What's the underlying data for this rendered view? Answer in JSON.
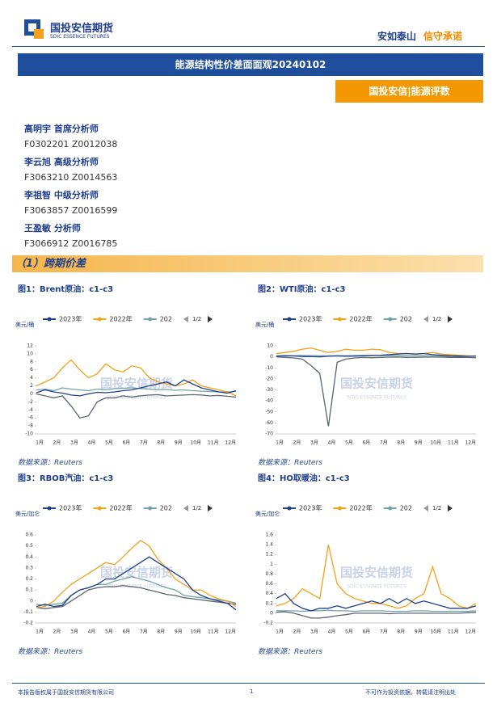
{
  "header": {
    "logo_cn": "国投安信期货",
    "logo_en": "SDIC ESSENCE FUTURES",
    "slogan_a": "安如泰山",
    "slogan_b": "信守承诺"
  },
  "title": "能源结构性价差面面观20240102",
  "tag": "国投安信|能源评数",
  "analysts": [
    {
      "name": "高明宇  首席分析师",
      "id": "F0302201  Z0012038"
    },
    {
      "name": "李云旭  高级分析师",
      "id": "F3063210  Z0014563"
    },
    {
      "name": "李祖智  中级分析师",
      "id": "F3063857  Z0016599"
    },
    {
      "name": "王盈敏  分析师",
      "id": "F3066912  Z0016785"
    }
  ],
  "section": "（1）跨期价差",
  "watermark": {
    "cn": "国投安信期货",
    "en": "SDIC ESSENCE FUTURES"
  },
  "chart_data": [
    {
      "type": "line",
      "title": "图1：Brent原油：c1-c3",
      "source": "数据来源：Reuters",
      "unit": "美元/桶",
      "legend_page": "1/2",
      "categories": [
        "1月",
        null,
        "2月",
        null,
        "3月",
        null,
        "4月",
        null,
        "5月",
        null,
        "6月",
        null,
        "7月",
        null,
        "8月",
        null,
        "9月",
        null,
        "10月",
        null,
        "11月",
        null,
        "12月",
        null
      ],
      "ylim": [
        -10,
        12
      ],
      "yticks": [
        -10,
        -8,
        -6,
        -4,
        -2,
        0,
        2,
        4,
        6,
        8,
        10,
        12
      ],
      "grid": false,
      "series": [
        {
          "name": "2023年",
          "color": "#1f3e8c",
          "values": [
            0.3,
            1.0,
            0.5,
            0.2,
            -0.3,
            -0.5,
            0,
            0.4,
            0.3,
            0.5,
            0.8,
            1.0,
            1.5,
            2.0,
            2.5,
            3.0,
            2.0,
            3.5,
            2.5,
            1.5,
            1.0,
            0.5,
            0.2,
            0.8
          ]
        },
        {
          "name": "2022年",
          "color": "#f5a01a",
          "values": [
            2.0,
            3.0,
            4.0,
            6.5,
            8.5,
            6.0,
            4.0,
            5.0,
            7.5,
            6.0,
            5.5,
            7.0,
            6.5,
            4.0,
            3.0,
            2.5,
            2.0,
            2.5,
            3.5,
            2.0,
            1.5,
            1.0,
            0.5,
            -0.5
          ]
        },
        {
          "name": "202",
          "color": "#6fa3a8",
          "values": [
            1.0,
            1.2,
            0.8,
            1.5,
            1.2,
            1.0,
            0.8,
            1.2,
            1.0,
            1.3,
            1.4,
            1.5,
            1.3,
            1.2,
            1.0,
            1.1,
            0.9,
            1.0,
            0.8,
            0.7,
            0.6,
            0.5,
            0.5,
            0.6
          ]
        },
        {
          "color": "#5a6470",
          "values": [
            0.0,
            -0.5,
            -1.0,
            -0.5,
            -3.0,
            -6.0,
            -5.5,
            -2.0,
            -1.0,
            -1.0,
            -0.5,
            -0.8,
            -0.5,
            -0.3,
            -0.2,
            -0.5,
            -0.4,
            -0.3,
            -0.2,
            -0.3,
            -0.5,
            -0.4,
            -0.6,
            -0.8
          ]
        }
      ]
    },
    {
      "type": "line",
      "title": "图2：WTI原油：c1-c3",
      "source": "数据来源：Reuters",
      "unit": "美元/桶",
      "legend_page": "1/2",
      "categories": [
        "1月",
        null,
        "2月",
        null,
        "3月",
        null,
        "4月",
        null,
        "5月",
        null,
        "6月",
        null,
        "7月",
        null,
        "8月",
        null,
        "9月",
        null,
        "10月",
        null,
        "11月",
        null,
        "12月",
        null
      ],
      "ylim": [
        -70,
        10
      ],
      "yticks": [
        -70,
        -60,
        -50,
        -40,
        -30,
        -20,
        -10,
        0,
        10
      ],
      "grid": false,
      "series": [
        {
          "name": "2023年",
          "color": "#1f3e8c",
          "values": [
            0.5,
            1,
            0.8,
            0.3,
            0.2,
            0,
            0.5,
            0.8,
            0.6,
            0.7,
            1,
            1.2,
            1.5,
            2,
            2.5,
            3,
            2.5,
            3,
            2,
            1.5,
            1,
            0.8,
            0.5,
            0.8
          ]
        },
        {
          "name": "2022年",
          "color": "#f5a01a",
          "values": [
            3,
            4,
            5,
            7,
            8,
            6,
            4,
            5,
            7,
            6,
            6,
            7,
            6.5,
            4,
            3,
            3,
            2.5,
            3,
            4,
            2.5,
            2,
            1.5,
            1,
            0.5
          ]
        },
        {
          "name": "202",
          "color": "#6fa3a8",
          "values": [
            1,
            1.2,
            1,
            1.3,
            1.2,
            1,
            0.9,
            1.1,
            1,
            1.2,
            1.3,
            1.4,
            1.2,
            1.1,
            1,
            1,
            0.9,
            1,
            0.8,
            0.7,
            0.6,
            0.5,
            0.5,
            0.6
          ]
        },
        {
          "color": "#5a6470",
          "values": [
            0,
            -0.5,
            -1,
            -2,
            -8,
            -15,
            -63,
            -5,
            -2,
            -1,
            -0.5,
            -0.8,
            -0.5,
            -0.3,
            -0.2,
            -0.5,
            -0.4,
            -0.3,
            -0.2,
            -0.3,
            -0.5,
            -0.4,
            -0.6,
            -0.8
          ]
        }
      ]
    },
    {
      "type": "line",
      "title": "图3：RBOB汽油：c1-c3",
      "source": "数据来源：Reuters",
      "unit": "美元/加仑",
      "legend_page": "1/2",
      "categories": [
        "1月",
        null,
        "2月",
        null,
        "3月",
        null,
        "4月",
        null,
        "5月",
        null,
        "6月",
        null,
        "7月",
        null,
        "8月",
        null,
        "9月",
        null,
        "10月",
        null,
        "11月",
        null,
        "12月",
        null
      ],
      "ylim": [
        -0.2,
        0.6
      ],
      "yticks": [
        -0.2,
        -0.1,
        0,
        0.1,
        0.2,
        0.3,
        0.4,
        0.5,
        0.6
      ],
      "grid": false,
      "series": [
        {
          "name": "2023年",
          "color": "#1f3e8c",
          "values": [
            -0.05,
            -0.03,
            -0.05,
            -0.04,
            0.05,
            0.1,
            0.12,
            0.15,
            0.2,
            0.2,
            0.25,
            0.3,
            0.35,
            0.4,
            0.35,
            0.3,
            0.25,
            0.2,
            0.1,
            0.05,
            0.02,
            0.0,
            -0.02,
            -0.08
          ]
        },
        {
          "name": "2022年",
          "color": "#f5a01a",
          "values": [
            -0.06,
            -0.05,
            0.0,
            0.08,
            0.15,
            0.2,
            0.25,
            0.3,
            0.35,
            0.33,
            0.4,
            0.48,
            0.55,
            0.5,
            0.38,
            0.3,
            0.2,
            0.15,
            0.1,
            0.1,
            0.05,
            0.02,
            0.0,
            -0.05
          ]
        },
        {
          "name": "202",
          "color": "#6fa3a8",
          "values": [
            -0.03,
            -0.04,
            -0.03,
            -0.02,
            0.05,
            0.1,
            0.12,
            0.15,
            0.15,
            0.18,
            0.2,
            0.22,
            0.2,
            0.18,
            0.15,
            0.12,
            0.1,
            0.05,
            0.04,
            0.03,
            0.02,
            0.01,
            0.0,
            -0.02
          ]
        },
        {
          "color": "#5a6470",
          "values": [
            -0.06,
            -0.07,
            -0.06,
            -0.05,
            0.0,
            0.05,
            0.1,
            0.12,
            0.13,
            0.13,
            0.14,
            0.13,
            0.12,
            0.1,
            0.08,
            0.06,
            0.05,
            0.03,
            0.02,
            0.01,
            0.0,
            -0.01,
            -0.02,
            -0.03
          ]
        }
      ]
    },
    {
      "type": "line",
      "title": "图4：HO取暖油：c1-c3",
      "source": "数据来源：Reuters",
      "unit": "美元/加仑",
      "legend_page": "1/2",
      "categories": [
        "1月",
        null,
        "2月",
        null,
        "3月",
        null,
        "4月",
        null,
        "5月",
        null,
        "6月",
        null,
        "7月",
        null,
        "8月",
        null,
        "9月",
        null,
        "10月",
        null,
        "11月",
        null,
        "12月",
        null
      ],
      "ylim": [
        -0.2,
        1.6
      ],
      "yticks": [
        -0.2,
        0,
        0.2,
        0.4,
        0.6,
        0.8,
        1,
        1.2,
        1.4,
        1.6
      ],
      "grid": false,
      "series": [
        {
          "name": "2023年",
          "color": "#1f3e8c",
          "values": [
            0.3,
            0.4,
            0.2,
            0.1,
            0.05,
            0.1,
            0.1,
            0.15,
            0.1,
            0.15,
            0.2,
            0.25,
            0.2,
            0.3,
            0.2,
            0.3,
            0.2,
            0.25,
            0.2,
            0.15,
            0.1,
            0.1,
            0.1,
            0.15
          ]
        },
        {
          "name": "2022年",
          "color": "#f5a01a",
          "values": [
            0.15,
            0.2,
            0.3,
            0.5,
            0.4,
            0.3,
            1.4,
            0.6,
            0.4,
            0.3,
            0.25,
            0.2,
            0.2,
            0.15,
            0.1,
            0.15,
            0.3,
            0.4,
            0.95,
            0.4,
            0.3,
            0.15,
            0.1,
            0.2
          ]
        },
        {
          "name": "202",
          "color": "#6fa3a8",
          "values": [
            0.05,
            0.05,
            0.05,
            0.04,
            0.05,
            0.05,
            0.06,
            0.05,
            0.05,
            0.04,
            0.05,
            0.05,
            0.05,
            0.04,
            0.04,
            0.04,
            0.05,
            0.05,
            0.04,
            0.04,
            0.04,
            0.04,
            0.04,
            0.05
          ]
        },
        {
          "color": "#5a6470",
          "values": [
            0.02,
            0.03,
            0.0,
            -0.05,
            -0.1,
            -0.1,
            -0.08,
            -0.05,
            -0.03,
            0.0,
            0.0,
            0.0,
            0.0,
            -0.01,
            0.0,
            0.0,
            0.0,
            0.0,
            0.0,
            0.0,
            0.0,
            0.0,
            0.01,
            0.02
          ]
        }
      ]
    }
  ],
  "footer": {
    "left": "本报告版权属于国投安信期货有限公司",
    "page": "1",
    "right": "不可作为投资依据，转载请注明出处"
  }
}
